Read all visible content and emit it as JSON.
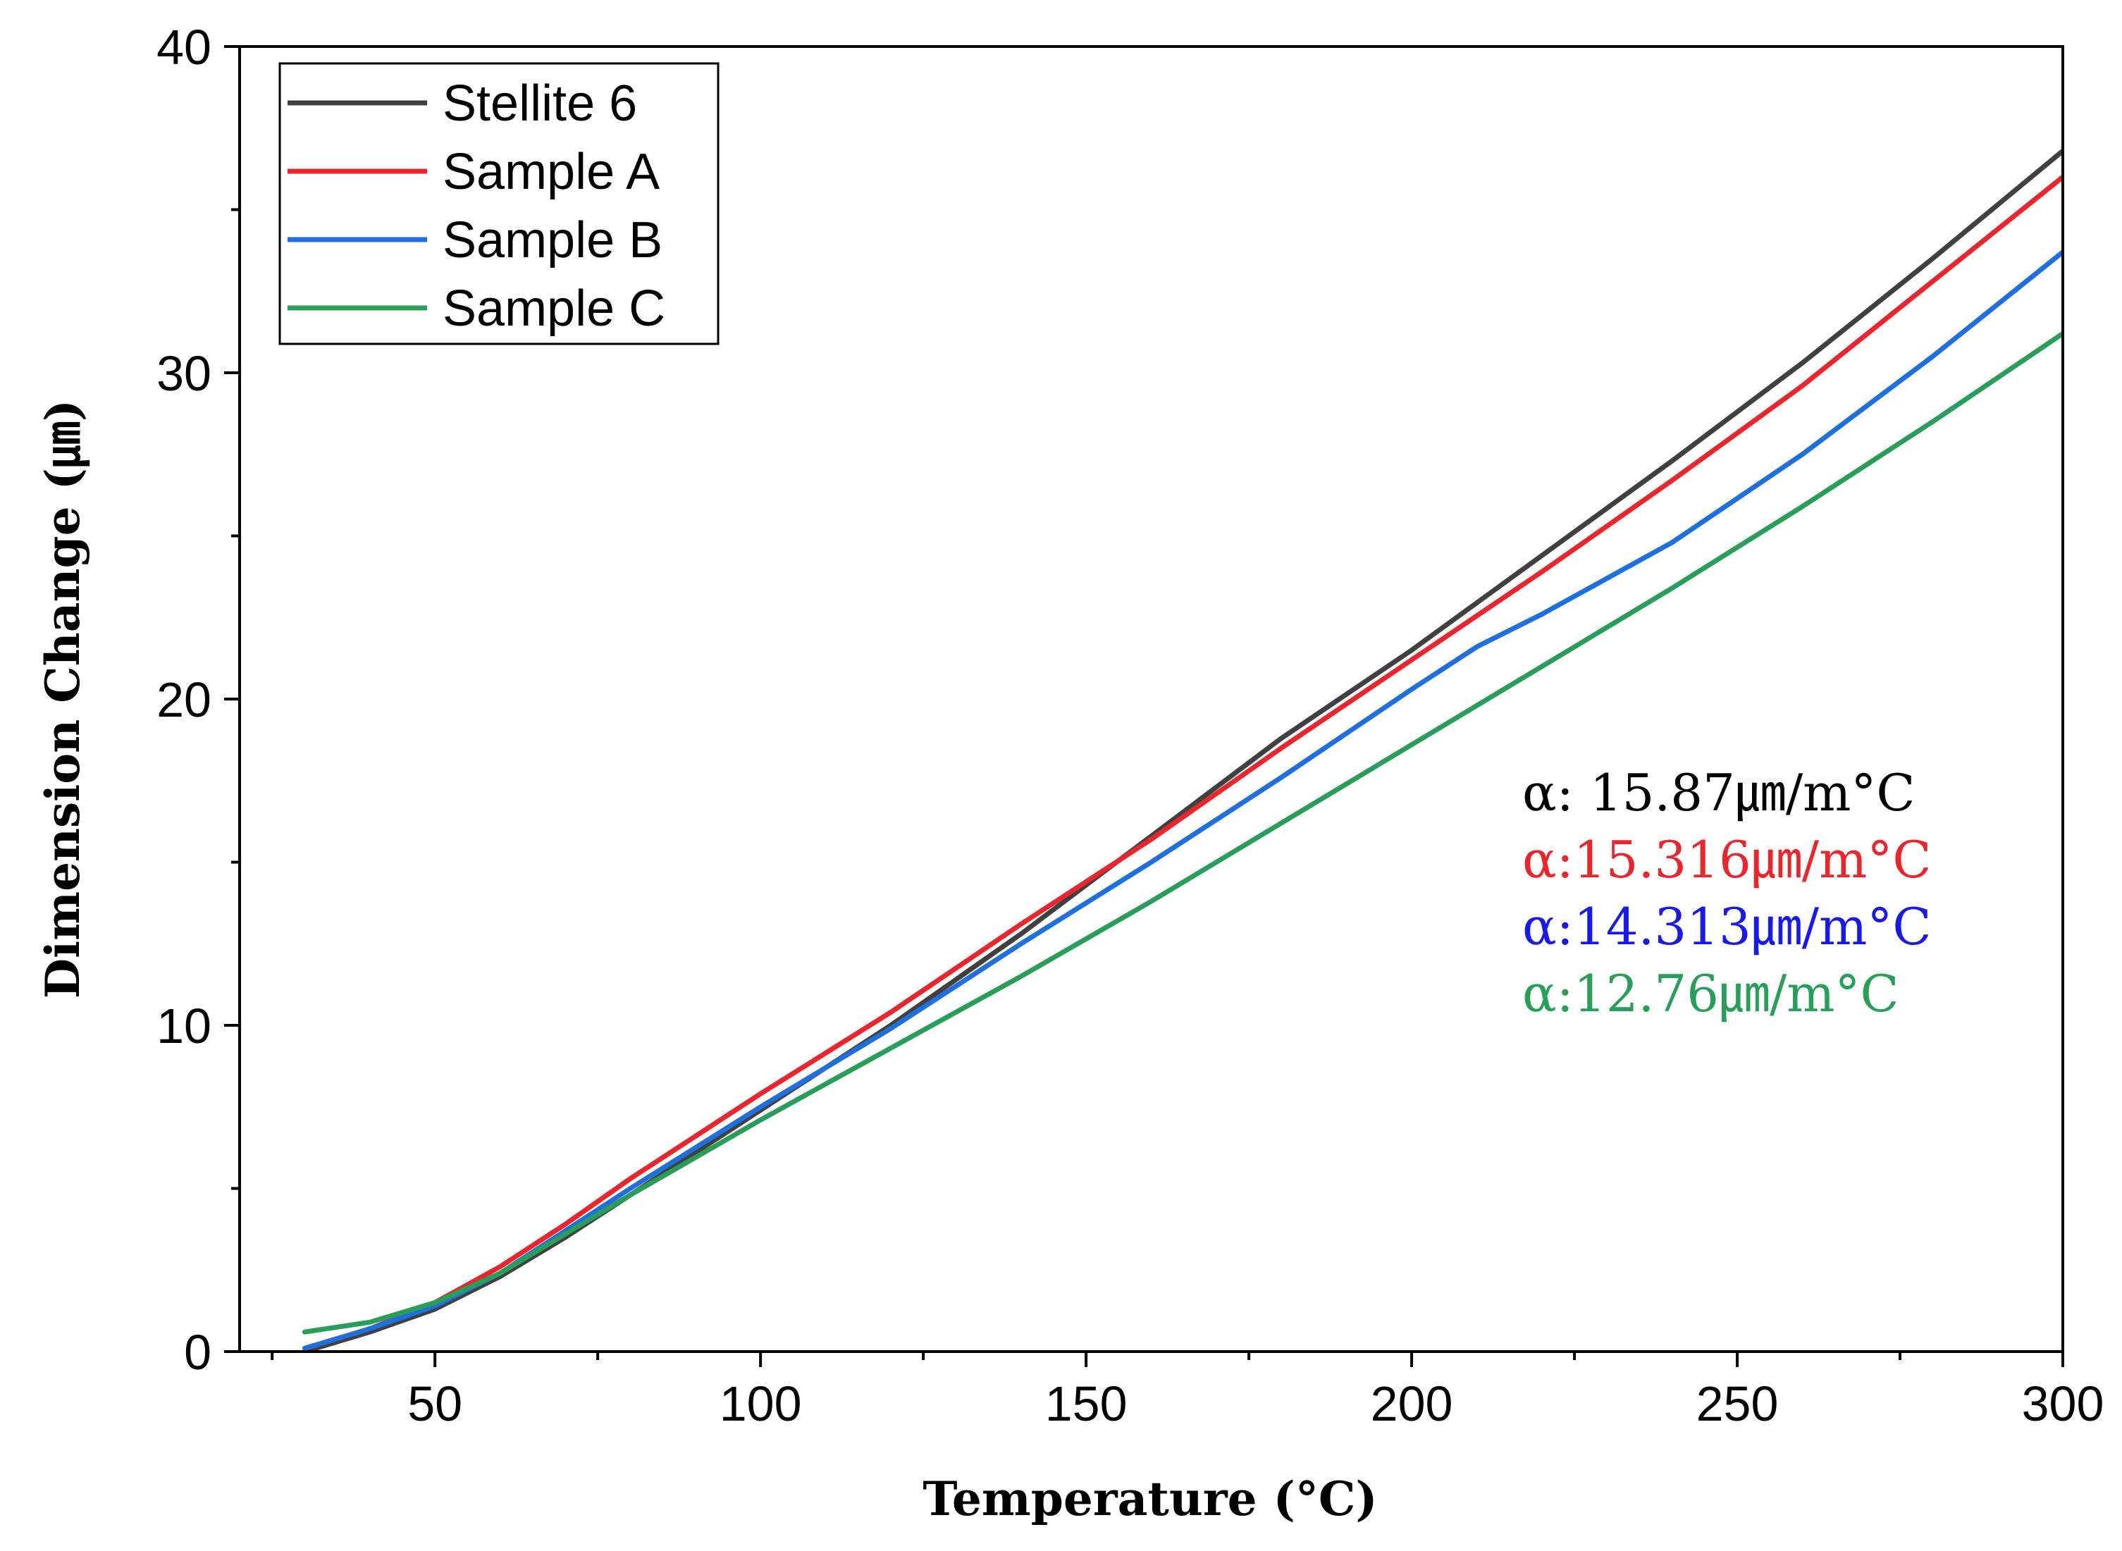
{
  "chart_data": {
    "type": "line",
    "title": "",
    "xlabel": "Temperature (°C)",
    "ylabel": "Dimension Change (㎛)",
    "xlim": [
      20,
      300
    ],
    "ylim": [
      0,
      40
    ],
    "x_ticks": [
      50,
      100,
      150,
      200,
      250,
      300
    ],
    "y_ticks": [
      0,
      10,
      20,
      30,
      40
    ],
    "x_minor_ticks": [
      25,
      75,
      125,
      175,
      225,
      275
    ],
    "y_minor_ticks": [
      5,
      15,
      25,
      35
    ],
    "grid": false,
    "legend_position": "top-left",
    "series": [
      {
        "name": "Stellite 6",
        "color": "#404040",
        "x": [
          30,
          40,
          50,
          60,
          70,
          80,
          100,
          120,
          140,
          160,
          180,
          200,
          220,
          240,
          260,
          280,
          300
        ],
        "y": [
          0.0,
          0.6,
          1.3,
          2.3,
          3.5,
          4.8,
          7.4,
          10.0,
          12.8,
          15.8,
          18.8,
          21.5,
          24.4,
          27.3,
          30.3,
          33.5,
          36.8
        ]
      },
      {
        "name": "Sample A",
        "color": "#e8262d",
        "x": [
          30,
          40,
          50,
          60,
          70,
          80,
          100,
          120,
          140,
          160,
          180,
          200,
          220,
          240,
          260,
          280,
          300
        ],
        "y": [
          0.1,
          0.7,
          1.5,
          2.6,
          3.9,
          5.3,
          7.9,
          10.4,
          13.1,
          15.7,
          18.5,
          21.2,
          23.9,
          26.7,
          29.6,
          32.8,
          36.0
        ]
      },
      {
        "name": "Sample B",
        "color": "#1f6fdc",
        "x": [
          30,
          40,
          50,
          60,
          70,
          80,
          100,
          120,
          140,
          160,
          180,
          200,
          210,
          220,
          240,
          260,
          280,
          300
        ],
        "y": [
          0.1,
          0.7,
          1.4,
          2.4,
          3.7,
          5.0,
          7.5,
          9.9,
          12.5,
          15.0,
          17.6,
          20.3,
          21.6,
          22.6,
          24.8,
          27.5,
          30.5,
          33.7
        ]
      },
      {
        "name": "Sample C",
        "color": "#2a9d5a",
        "x": [
          30,
          40,
          50,
          60,
          70,
          80,
          100,
          120,
          140,
          160,
          180,
          200,
          220,
          240,
          260,
          280,
          300
        ],
        "y": [
          0.6,
          0.9,
          1.5,
          2.4,
          3.6,
          4.8,
          7.1,
          9.3,
          11.5,
          13.8,
          16.2,
          18.6,
          21.0,
          23.4,
          25.9,
          28.5,
          31.2
        ]
      }
    ],
    "annotations": [
      {
        "text": "α: 15.87㎛/m°C",
        "color": "#000000"
      },
      {
        "text": "α:15.316㎛/m°C",
        "color": "#e8262d"
      },
      {
        "text": "α:14.313㎛/m°C",
        "color": "#1a1ae6"
      },
      {
        "text": "α:12.76㎛/m°C",
        "color": "#2a9d5a"
      }
    ]
  }
}
